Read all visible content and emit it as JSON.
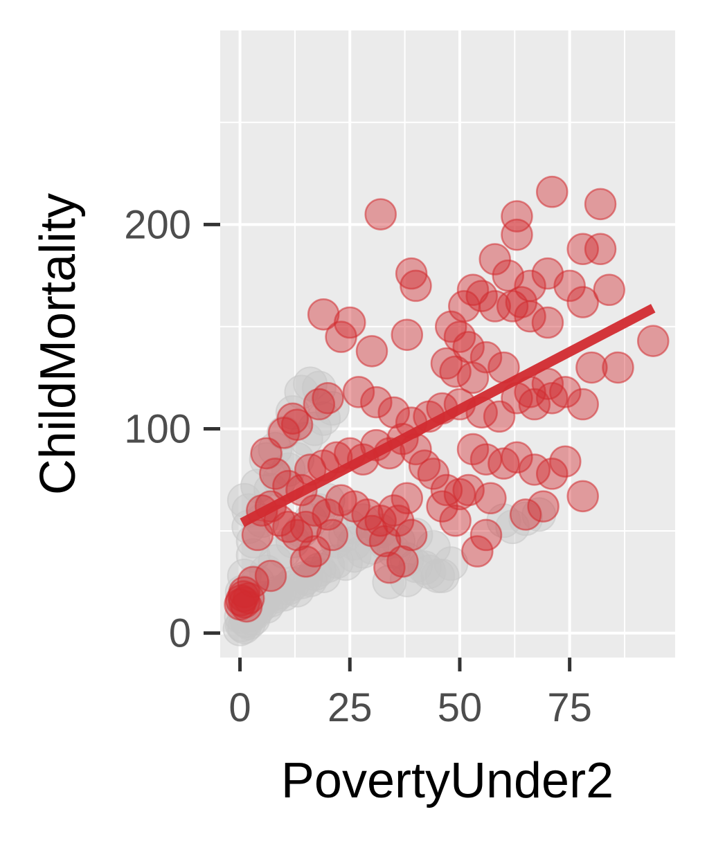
{
  "chart_data": {
    "type": "scatter",
    "title": "",
    "xlabel": "PovertyUnder2",
    "ylabel": "ChildMortality",
    "xlim": [
      -4.5,
      99
    ],
    "ylim": [
      -12,
      295
    ],
    "x_ticks": [
      0,
      25,
      50,
      75
    ],
    "y_ticks": [
      0,
      100,
      200
    ],
    "x_tick_labels": [
      "0",
      "25",
      "50",
      "75"
    ],
    "y_tick_labels": [
      "0",
      "100",
      "200"
    ],
    "grid": true,
    "panel_background": "#ebebeb",
    "grid_color": "#ffffff",
    "highlight_color": "#d22b30",
    "background_points_color": "#c8c8c8",
    "series": [
      {
        "role": "background",
        "points": [
          [
            0,
            2
          ],
          [
            0.5,
            4
          ],
          [
            1,
            3
          ],
          [
            1.5,
            6
          ],
          [
            2,
            5
          ],
          [
            0.3,
            8
          ],
          [
            2.5,
            9
          ],
          [
            3,
            7
          ],
          [
            3.5,
            10
          ],
          [
            4,
            12
          ],
          [
            0.8,
            12
          ],
          [
            1.2,
            15
          ],
          [
            5,
            14
          ],
          [
            5.5,
            17
          ],
          [
            6,
            13
          ],
          [
            7,
            16
          ],
          [
            8,
            18
          ],
          [
            9,
            20
          ],
          [
            10,
            19
          ],
          [
            11,
            22
          ],
          [
            12,
            24
          ],
          [
            13,
            21
          ],
          [
            14,
            25
          ],
          [
            15,
            27
          ],
          [
            16,
            26
          ],
          [
            17,
            29
          ],
          [
            18,
            31
          ],
          [
            19,
            28
          ],
          [
            20,
            33
          ],
          [
            22,
            35
          ],
          [
            24,
            34
          ],
          [
            26,
            38
          ],
          [
            28,
            40
          ],
          [
            30,
            42
          ],
          [
            33,
            44
          ],
          [
            35,
            40
          ],
          [
            38,
            36
          ],
          [
            40,
            33
          ],
          [
            43,
            30
          ],
          [
            45,
            28
          ],
          [
            48,
            34
          ],
          [
            4,
            25
          ],
          [
            6,
            30
          ],
          [
            8,
            35
          ],
          [
            10,
            40
          ],
          [
            12,
            45
          ],
          [
            14,
            50
          ],
          [
            16,
            55
          ],
          [
            18,
            60
          ],
          [
            20,
            65
          ],
          [
            3,
            45
          ],
          [
            5,
            55
          ],
          [
            2,
            60
          ],
          [
            1,
            65
          ],
          [
            7,
            70
          ],
          [
            9,
            75
          ],
          [
            11,
            80
          ],
          [
            13,
            85
          ],
          [
            15,
            95
          ],
          [
            17,
            100
          ],
          [
            19,
            105
          ],
          [
            21,
            110
          ],
          [
            14,
            118
          ],
          [
            16,
            122
          ],
          [
            18,
            120
          ],
          [
            12,
            108
          ],
          [
            10,
            98
          ],
          [
            8,
            90
          ],
          [
            6,
            85
          ],
          [
            4,
            72
          ],
          [
            2,
            52
          ],
          [
            3,
            38
          ],
          [
            1,
            28
          ],
          [
            0.5,
            20
          ],
          [
            25,
            52
          ],
          [
            28,
            55
          ],
          [
            32,
            50
          ],
          [
            36,
            45
          ],
          [
            40,
            48
          ],
          [
            44,
            42
          ],
          [
            34,
            25
          ],
          [
            38,
            26
          ],
          [
            42,
            32
          ],
          [
            46,
            28
          ],
          [
            60,
            55
          ],
          [
            62,
            52
          ],
          [
            65,
            56
          ],
          [
            68,
            58
          ],
          [
            22,
            45
          ],
          [
            24,
            48
          ],
          [
            26,
            44
          ]
        ]
      },
      {
        "role": "highlight",
        "points": [
          [
            32,
            205
          ],
          [
            71,
            216
          ],
          [
            63,
            204
          ],
          [
            82,
            210
          ],
          [
            63,
            195
          ],
          [
            58,
            183
          ],
          [
            78,
            188
          ],
          [
            82,
            188
          ],
          [
            39,
            176
          ],
          [
            40,
            170
          ],
          [
            61,
            175
          ],
          [
            66,
            170
          ],
          [
            70,
            176
          ],
          [
            75,
            170
          ],
          [
            53,
            168
          ],
          [
            51,
            160
          ],
          [
            55,
            165
          ],
          [
            58,
            160
          ],
          [
            62,
            160
          ],
          [
            64,
            162
          ],
          [
            66,
            155
          ],
          [
            70,
            152
          ],
          [
            78,
            162
          ],
          [
            84,
            168
          ],
          [
            19,
            156
          ],
          [
            25,
            152
          ],
          [
            23,
            145
          ],
          [
            38,
            146
          ],
          [
            30,
            138
          ],
          [
            48,
            150
          ],
          [
            50,
            145
          ],
          [
            52,
            140
          ],
          [
            47,
            132
          ],
          [
            49,
            128
          ],
          [
            53,
            125
          ],
          [
            56,
            135
          ],
          [
            60,
            130
          ],
          [
            94,
            143
          ],
          [
            86,
            130
          ],
          [
            80,
            130
          ],
          [
            66,
            118
          ],
          [
            70,
            122
          ],
          [
            74,
            118
          ],
          [
            78,
            112
          ],
          [
            18,
            112
          ],
          [
            20,
            115
          ],
          [
            27,
            118
          ],
          [
            31,
            113
          ],
          [
            35,
            108
          ],
          [
            39,
            103
          ],
          [
            43,
            106
          ],
          [
            46,
            110
          ],
          [
            50,
            112
          ],
          [
            55,
            108
          ],
          [
            59,
            106
          ],
          [
            63,
            115
          ],
          [
            67,
            112
          ],
          [
            71,
            115
          ],
          [
            12,
            105
          ],
          [
            10,
            98
          ],
          [
            13,
            102
          ],
          [
            6,
            88
          ],
          [
            8,
            78
          ],
          [
            11,
            72
          ],
          [
            14,
            70
          ],
          [
            16,
            80
          ],
          [
            19,
            82
          ],
          [
            22,
            86
          ],
          [
            25,
            88
          ],
          [
            28,
            85
          ],
          [
            31,
            92
          ],
          [
            34,
            88
          ],
          [
            37,
            95
          ],
          [
            40,
            90
          ],
          [
            42,
            82
          ],
          [
            44,
            78
          ],
          [
            47,
            70
          ],
          [
            50,
            68
          ],
          [
            53,
            90
          ],
          [
            56,
            85
          ],
          [
            60,
            83
          ],
          [
            63,
            86
          ],
          [
            67,
            80
          ],
          [
            71,
            78
          ],
          [
            74,
            84
          ],
          [
            78,
            67
          ],
          [
            69,
            62
          ],
          [
            65,
            58
          ],
          [
            57,
            66
          ],
          [
            52,
            70
          ],
          [
            46,
            62
          ],
          [
            38,
            66
          ],
          [
            35,
            60
          ],
          [
            32,
            55
          ],
          [
            29,
            58
          ],
          [
            26,
            62
          ],
          [
            23,
            65
          ],
          [
            20,
            58
          ],
          [
            17,
            60
          ],
          [
            15,
            52
          ],
          [
            13,
            48
          ],
          [
            11,
            52
          ],
          [
            9,
            55
          ],
          [
            7,
            62
          ],
          [
            5,
            60
          ],
          [
            36,
            55
          ],
          [
            39,
            48
          ],
          [
            33,
            45
          ],
          [
            30,
            50
          ],
          [
            56,
            48
          ],
          [
            54,
            40
          ],
          [
            49,
            55
          ],
          [
            37,
            35
          ],
          [
            34,
            32
          ],
          [
            17,
            40
          ],
          [
            15,
            35
          ],
          [
            21,
            48
          ],
          [
            3,
            25
          ],
          [
            1,
            20
          ],
          [
            1,
            15
          ],
          [
            0.3,
            16
          ],
          [
            0.8,
            18
          ],
          [
            1.5,
            13
          ],
          [
            0,
            14
          ],
          [
            2,
            17
          ],
          [
            7,
            28
          ],
          [
            4,
            48
          ]
        ]
      }
    ],
    "trend_line": {
      "x": [
        0.5,
        94
      ],
      "y": [
        54,
        159
      ]
    }
  }
}
